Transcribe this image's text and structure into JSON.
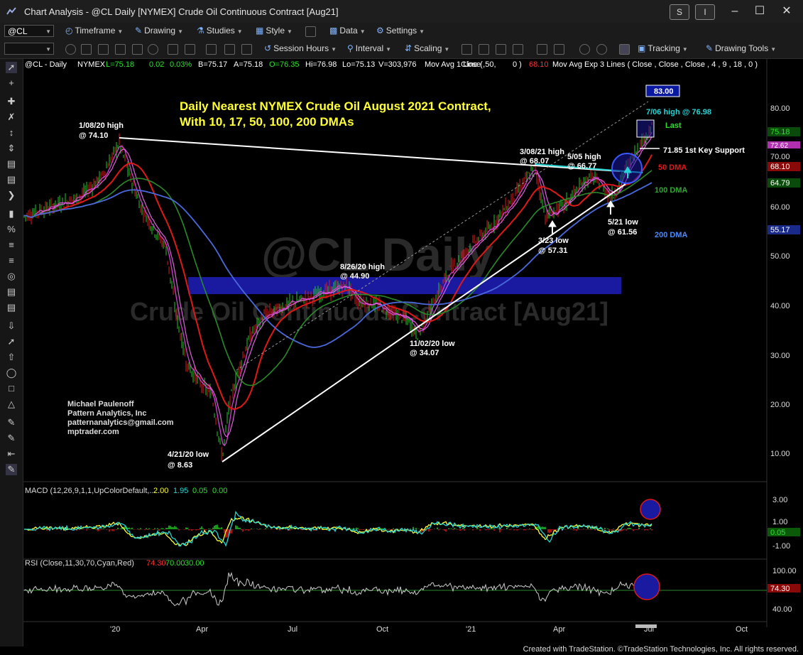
{
  "window": {
    "title": "Chart Analysis - @CL Daily [NYMEX] Crude Oil Continuous Contract [Aug21]",
    "btn_s": "S",
    "btn_i": "I"
  },
  "toolbar1": {
    "symbol": "@CL",
    "timeframe": "Timeframe",
    "drawing": "Drawing",
    "studies": "Studies",
    "style": "Style",
    "data": "Data",
    "settings": "Settings"
  },
  "toolbar2": {
    "session_hours": "Session Hours",
    "interval": "Interval",
    "scaling": "Scaling",
    "tracking": "Tracking",
    "drawing_tools": "Drawing Tools"
  },
  "price_header": {
    "symbol": "@CL - Daily",
    "exchange": "NYMEX",
    "last": "L=75.18",
    "change": "0.02",
    "pct": "0.03%",
    "bid": "B=75.17",
    "ask": "A=75.18",
    "open": "O=76.35",
    "high": "Hi=76.98",
    "low": "Lo=75.13",
    "volume": "V=303,976",
    "ma1": "Mov Avg 1 Line (",
    "ma1_params": "Close ,50,",
    "ma1_zero": "0 )",
    "ma1_val": "68.10",
    "ma3": "Mov Avg Exp 3 Lines ( Close , Close , Close , 4 , 9 , 18 , 0 )"
  },
  "watermark": {
    "big": "@CL Daily",
    "sub": "Crude Oil Continuous Contract [Aug21]"
  },
  "chart_title": {
    "line1": "Daily Nearest NYMEX Crude Oil August 2021 Contract,",
    "line2": "With 10, 17, 50, 100, 200 DMAs"
  },
  "annotations": {
    "a1": "1/08/20 high",
    "a1v": "@ 74.10",
    "a2": "8/26/20 high",
    "a2v": "@ 44.90",
    "a3": "11/02/20 low",
    "a3v": "@ 34.07",
    "a4": "4/21/20 low",
    "a4v": "@ 8.63",
    "a5": "3/08/21 high",
    "a5v": "@ 68.07",
    "a6": "5/05 high",
    "a6v": "@ 66.77",
    "a7": "3/23 low",
    "a7v": "@ 57.31",
    "a8": "5/21 low",
    "a8v": "@ 61.56",
    "a9": "7/06 high @ 76.98",
    "last": "Last",
    "support": "71.85 1st Key Support",
    "dma50": "50 DMA",
    "dma100": "100 DMA",
    "dma200": "200 DMA",
    "target": "83.00"
  },
  "author": {
    "name": "Michael Paulenoff",
    "company": "Pattern Analytics, Inc",
    "email": "patternanalytics@gmail.com",
    "site": "mptrader.com"
  },
  "price_axis": [
    "80.00",
    "70.00",
    "60.00",
    "50.00",
    "40.00",
    "30.00",
    "20.00",
    "10.00"
  ],
  "price_tags": {
    "last": "75.18",
    "t2": "72.62",
    "ma50": "68.10",
    "ma100": "64.79",
    "ma200": "55.17"
  },
  "macd": {
    "label": "MACD (12,26,9,1,1,UpColorDefault,...",
    "v1": "2.00",
    "v2": "1.95",
    "v3": "0.05",
    "v4": "0.00",
    "axis": [
      "3.00",
      "1.00",
      "-1.00"
    ],
    "tag": "0.05"
  },
  "rsi": {
    "label": "RSI (Close,11,30,70,Cyan,Red)",
    "v1": "74.30",
    "v2": "70.00",
    "v3": "30.00",
    "axis": [
      "100.00",
      "40.00"
    ],
    "tag": "74.30"
  },
  "time_axis": [
    "'20",
    "Apr",
    "Jul",
    "Oct",
    "'21",
    "Apr",
    "Jul",
    "Oct"
  ],
  "footer": "Created with TradeStation. ©TradeStation Technologies, Inc. All rights reserved.",
  "colors": {
    "background": "#000000",
    "ma10": "#d040d0",
    "ma50": "#e01818",
    "ma100": "#2a8a2a",
    "ma200": "#4a6adc",
    "annotation_yellow": "#ffff33",
    "support_band": "#1a1aa0"
  }
}
